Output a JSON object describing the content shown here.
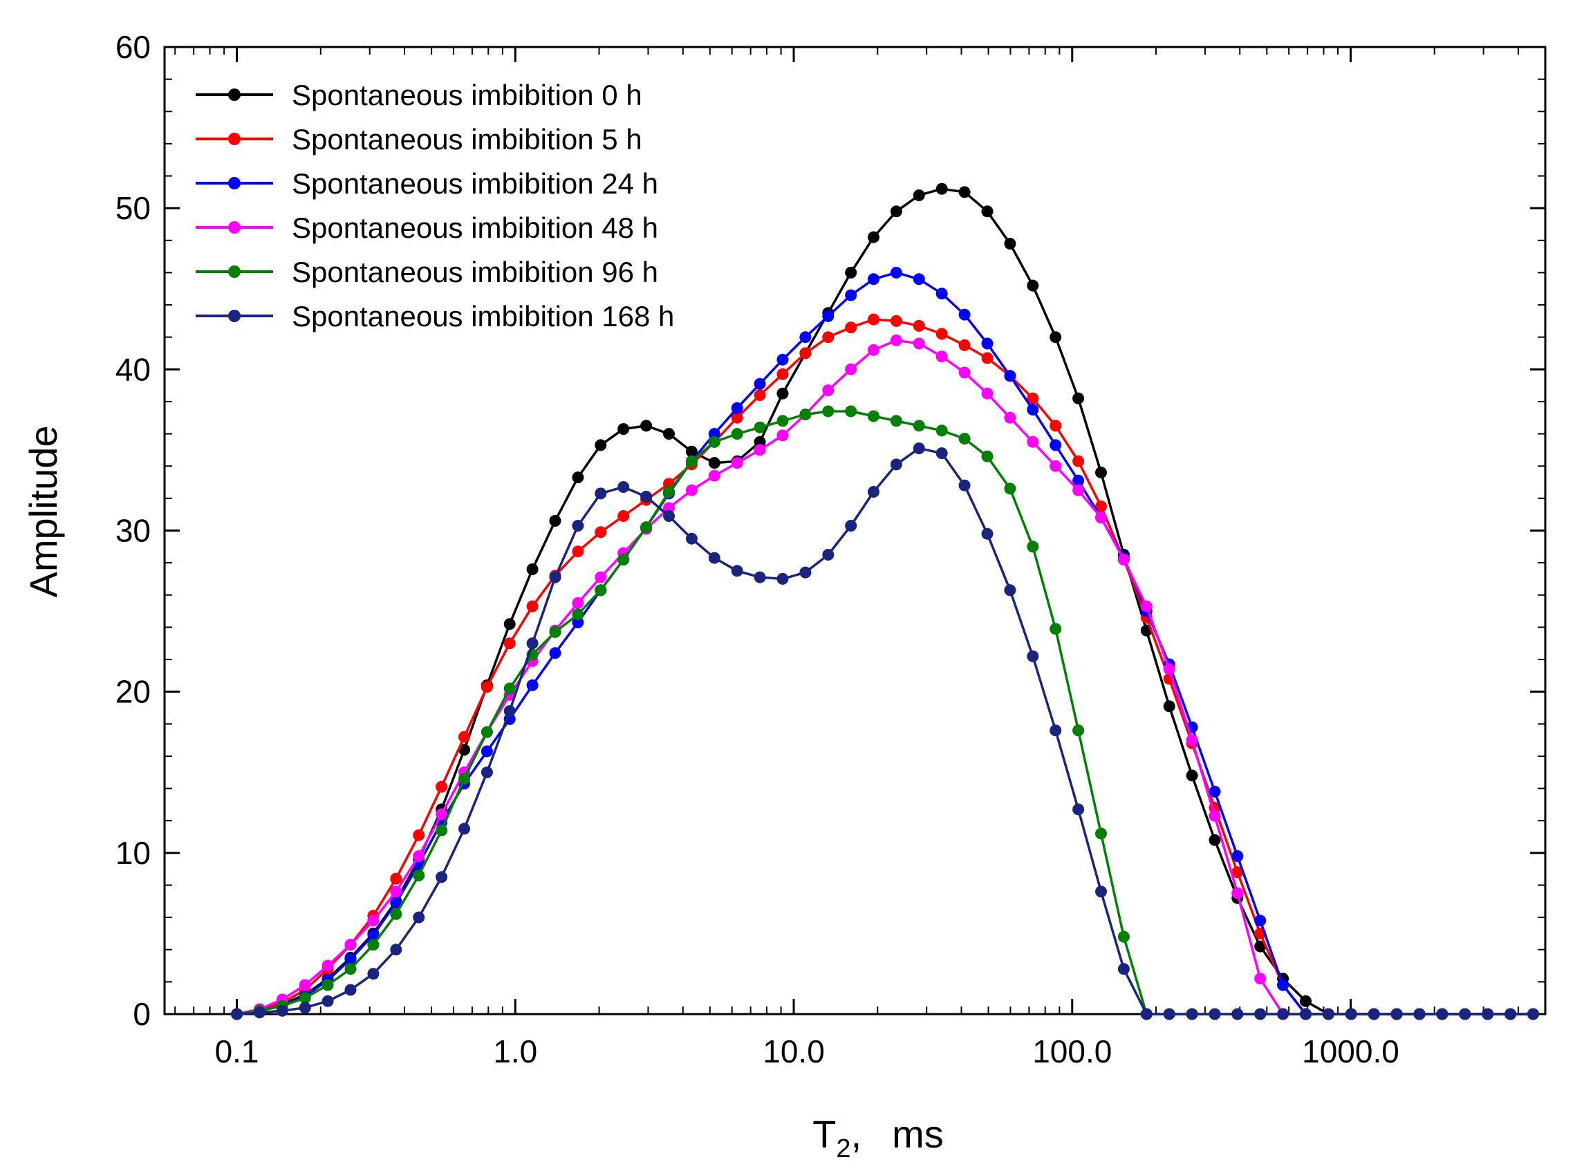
{
  "chart_data": {
    "type": "line",
    "title": "",
    "xlabel": "T",
    "xlabel_subscript": "2",
    "xlabel_unit": "ms",
    "ylabel": "Amplitude",
    "xscale": "log",
    "xlim": [
      0.055,
      5000
    ],
    "ylim": [
      0,
      60
    ],
    "xticks": [
      0.1,
      1.0,
      10.0,
      100.0,
      1000.0
    ],
    "xtick_labels": [
      "0.1",
      "1.0",
      "10.0",
      "100.0",
      "1000.0"
    ],
    "yticks": [
      0,
      10,
      20,
      30,
      40,
      50,
      60
    ],
    "ytick_labels": [
      "0",
      "10",
      "20",
      "30",
      "40",
      "50",
      "60"
    ],
    "legend_position": "top-left",
    "grid": false,
    "x": [
      0.1,
      0.1207,
      0.1456,
      0.1758,
      0.2121,
      0.256,
      0.309,
      0.3729,
      0.4501,
      0.5432,
      0.6556,
      0.7913,
      0.955,
      1.1526,
      1.3911,
      1.6789,
      2.0263,
      2.4456,
      2.9516,
      3.5623,
      4.2994,
      5.189,
      6.2627,
      7.5585,
      9.1225,
      11.0101,
      13.2883,
      16.0378,
      19.3563,
      23.3614,
      28.1952,
      34.0292,
      41.0702,
      49.5682,
      59.8245,
      72.2029,
      87.1427,
      105.174,
      126.936,
      153.201,
      184.9,
      223.157,
      269.331,
      325.058,
      392.316,
      473.49,
      571.462,
      689.705,
      832.414,
      1004.65,
      1212.53,
      1463.42,
      1766.22,
      2131.67,
      2572.75,
      3105.08,
      3747.57,
      4522.99
    ],
    "series": [
      {
        "name": "Spontaneous imbibition 0 h",
        "color": "#000000",
        "values": [
          0,
          0.2,
          0.6,
          1.2,
          2.2,
          3.5,
          5.0,
          7.0,
          9.6,
          12.7,
          16.4,
          20.4,
          24.2,
          27.6,
          30.6,
          33.3,
          35.3,
          36.3,
          36.5,
          36.0,
          34.9,
          34.2,
          34.3,
          35.5,
          38.5,
          41.0,
          43.5,
          46.0,
          48.2,
          49.8,
          50.8,
          51.2,
          51.0,
          49.8,
          47.8,
          45.2,
          42.0,
          38.2,
          33.6,
          28.5,
          23.8,
          19.1,
          14.8,
          10.8,
          7.2,
          4.2,
          2.2,
          0.8,
          0,
          0,
          0,
          0,
          0,
          0,
          0,
          0,
          0,
          0
        ]
      },
      {
        "name": "Spontaneous imbibition 5 h",
        "color": "#ff0000",
        "values": [
          0,
          0.3,
          0.7,
          1.5,
          2.8,
          4.3,
          6.1,
          8.4,
          11.1,
          14.1,
          17.2,
          20.3,
          23.0,
          25.3,
          27.2,
          28.7,
          29.9,
          30.9,
          31.9,
          32.9,
          34.1,
          35.5,
          37.0,
          38.4,
          39.7,
          41.0,
          42.0,
          42.6,
          43.1,
          43.0,
          42.7,
          42.2,
          41.5,
          40.7,
          39.6,
          38.2,
          36.5,
          34.3,
          31.5,
          28.2,
          24.6,
          20.8,
          16.8,
          12.8,
          8.8,
          5.0,
          1.8,
          0,
          0,
          0,
          0,
          0,
          0,
          0,
          0,
          0,
          0,
          0
        ]
      },
      {
        "name": "Spontaneous imbibition 24 h",
        "color": "#0000ff",
        "values": [
          0,
          0.2,
          0.5,
          1.1,
          2.1,
          3.4,
          4.9,
          6.9,
          9.3,
          11.9,
          14.3,
          16.3,
          18.3,
          20.4,
          22.4,
          24.3,
          26.3,
          28.2,
          30.2,
          32.3,
          34.3,
          36.0,
          37.6,
          39.1,
          40.6,
          42.0,
          43.3,
          44.6,
          45.6,
          46.0,
          45.6,
          44.7,
          43.4,
          41.6,
          39.6,
          37.5,
          35.3,
          33.1,
          30.8,
          28.3,
          25.0,
          21.7,
          17.8,
          13.8,
          9.8,
          5.8,
          1.8,
          0,
          0,
          0,
          0,
          0,
          0,
          0,
          0,
          0,
          0,
          0
        ]
      },
      {
        "name": "Spontaneous imbibition 48 h",
        "color": "#ff00ff",
        "values": [
          0,
          0.3,
          0.9,
          1.8,
          3.0,
          4.3,
          5.8,
          7.6,
          9.8,
          12.4,
          15.0,
          17.5,
          19.8,
          21.9,
          23.8,
          25.5,
          27.1,
          28.6,
          30.1,
          31.4,
          32.5,
          33.4,
          34.2,
          35.0,
          35.9,
          37.2,
          38.7,
          40.0,
          41.2,
          41.8,
          41.6,
          40.8,
          39.8,
          38.5,
          37.0,
          35.5,
          34.0,
          32.5,
          30.8,
          28.2,
          25.3,
          21.4,
          17.0,
          12.3,
          7.5,
          2.2,
          0,
          0,
          0,
          0,
          0,
          0,
          0,
          0,
          0,
          0,
          0,
          0
        ]
      },
      {
        "name": "Spontaneous imbibition 96 h",
        "color": "#008000",
        "values": [
          0,
          0.2,
          0.5,
          1.0,
          1.8,
          2.8,
          4.3,
          6.2,
          8.6,
          11.4,
          14.6,
          17.5,
          20.2,
          22.3,
          23.7,
          24.8,
          26.3,
          28.2,
          30.2,
          32.4,
          34.3,
          35.5,
          36.0,
          36.4,
          36.8,
          37.2,
          37.4,
          37.4,
          37.1,
          36.8,
          36.5,
          36.2,
          35.7,
          34.6,
          32.6,
          29.0,
          23.9,
          17.6,
          11.2,
          4.8,
          0,
          0,
          0,
          0,
          0,
          0,
          0,
          0,
          0,
          0,
          0,
          0,
          0,
          0,
          0,
          0,
          0,
          0
        ]
      },
      {
        "name": "Spontaneous imbibition 168 h",
        "color": "#1a237e",
        "values": [
          0,
          0.1,
          0.2,
          0.4,
          0.8,
          1.5,
          2.5,
          4.0,
          6.0,
          8.5,
          11.5,
          15.0,
          18.8,
          23.0,
          27.1,
          30.3,
          32.3,
          32.7,
          32.1,
          30.9,
          29.5,
          28.3,
          27.5,
          27.1,
          27.0,
          27.4,
          28.5,
          30.3,
          32.4,
          34.1,
          35.1,
          34.8,
          32.8,
          29.8,
          26.3,
          22.2,
          17.6,
          12.7,
          7.6,
          2.8,
          0,
          0,
          0,
          0,
          0,
          0,
          0,
          0,
          0,
          0,
          0,
          0,
          0,
          0,
          0,
          0,
          0,
          0
        ]
      }
    ]
  }
}
